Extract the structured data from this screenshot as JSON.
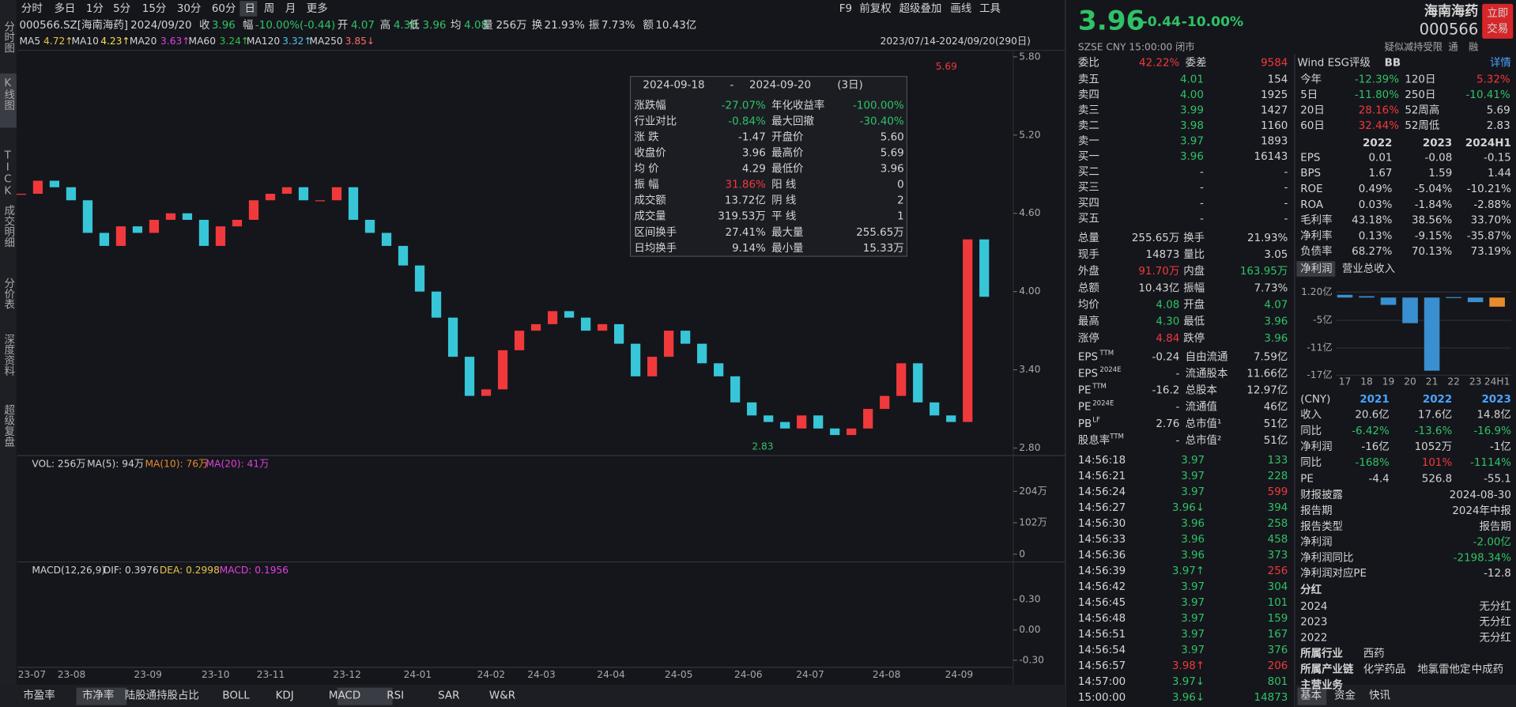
{
  "sidebar": [
    "分时图",
    "K线图",
    "TICK",
    "成交明细",
    "分价表",
    "深度资料",
    "超级复盘"
  ],
  "toolbar": {
    "periods": [
      "分时",
      "多日",
      "1分",
      "5分",
      "15分",
      "30分",
      "60分",
      "日",
      "周",
      "月",
      "更多"
    ],
    "tools": [
      "F9",
      "前复权",
      "超级叠加",
      "画线",
      "工具"
    ]
  },
  "quote_bar": {
    "code": "000566.SZ[海南海药]",
    "date": "2024/09/20",
    "items": [
      [
        "收",
        "3.96"
      ],
      [
        "幅",
        "-10.00%(-0.44)"
      ],
      [
        "开",
        "4.07"
      ],
      [
        "高",
        "4.30"
      ],
      [
        "低",
        "3.96"
      ],
      [
        "均",
        "4.08"
      ],
      [
        "量",
        "256万"
      ],
      [
        "换",
        "21.93%"
      ],
      [
        "振",
        "7.73%"
      ],
      [
        "额",
        "10.43亿"
      ]
    ]
  },
  "ma_bar": {
    "items": [
      [
        "MA5",
        "4.72↑"
      ],
      [
        "MA10",
        "4.23↑"
      ],
      [
        "MA20",
        "3.63↑"
      ],
      [
        "MA60",
        "3.24↑"
      ],
      [
        "MA120",
        "3.32↑"
      ],
      [
        "MA250",
        "3.85↓"
      ]
    ],
    "range": "2023/07/14-2024/09/20(290日)"
  },
  "price_chart": {
    "ylim": [
      2.75,
      5.85
    ],
    "yticks": [
      {
        "value": 5.8,
        "label": "5.80"
      },
      {
        "value": 5.2,
        "label": "5.20"
      },
      {
        "value": 4.6,
        "label": "4.60"
      },
      {
        "value": 4,
        "label": "4.00"
      },
      {
        "value": 3.4,
        "label": "3.40"
      },
      {
        "value": 2.8,
        "label": "2.80"
      }
    ],
    "weekly_closes": [
      4.75,
      4.85,
      4.8,
      4.7,
      4.45,
      4.35,
      4.5,
      4.45,
      4.55,
      4.6,
      4.55,
      4.35,
      4.5,
      4.55,
      4.7,
      4.75,
      4.8,
      4.7,
      4.7,
      4.8,
      4.55,
      4.45,
      4.35,
      4.2,
      4.0,
      3.8,
      3.5,
      3.2,
      3.25,
      3.55,
      3.7,
      3.75,
      3.85,
      3.8,
      3.7,
      3.75,
      3.6,
      3.35,
      3.5,
      3.7,
      3.6,
      3.45,
      3.35,
      3.15,
      3.05,
      3.0,
      2.95,
      3.05,
      2.95,
      2.9,
      2.95,
      3.1,
      3.2,
      3.45,
      3.15,
      3.05,
      3.0,
      4.4,
      3.96
    ],
    "high_label": "5.69",
    "low_label": "2.83"
  },
  "popup": {
    "start": "2024-09-18",
    "dash": "-",
    "end": "2024-09-20",
    "days": "(3日)",
    "rows": [
      [
        "涨跌幅",
        "-27.07%",
        "年化收益率",
        "-100.00%"
      ],
      [
        "行业对比",
        "-0.84%",
        "最大回撤",
        "-30.40%"
      ],
      [
        "涨 跌",
        "-1.47",
        "开盘价",
        "5.60"
      ],
      [
        "收盘价",
        "3.96",
        "最高价",
        "5.69"
      ],
      [
        "均 价",
        "4.29",
        "最低价",
        "3.96"
      ],
      [
        "振 幅",
        "31.86%",
        "阳 线",
        "0"
      ],
      [
        "成交额",
        "13.72亿",
        "阴 线",
        "2"
      ],
      [
        "成交量",
        "319.53万",
        "平 线",
        "1"
      ],
      [
        "区间换手",
        "27.41%",
        "最大量",
        "255.65万"
      ],
      [
        "日均换手",
        "9.14%",
        "最小量",
        "15.33万"
      ]
    ]
  },
  "volume_panel": {
    "header": [
      "VOL: 256万",
      "MA(5): 94万",
      "MA(10): 76万",
      "MA(20): 41万"
    ],
    "ylim": [
      -22,
      267
    ],
    "yticks": [
      {
        "value": 204,
        "label": "204万"
      },
      {
        "value": 102,
        "label": "102万"
      },
      0
    ]
  },
  "macd_panel": {
    "header": [
      "MACD(12,26,9)",
      "DIF: 0.3976",
      "DEA: 0.2998",
      "MACD: 0.1956"
    ],
    "ylim": [
      -0.37,
      0.51
    ],
    "yticks": [
      {
        "value": 0.3,
        "label": "0.30"
      },
      {
        "value": 0,
        "label": "0.00"
      },
      {
        "value": -0.3,
        "label": "-0.30"
      }
    ]
  },
  "x_axis": [
    "23-07",
    "23-08",
    "23-09",
    "23-10",
    "23-11",
    "23-12",
    "24-01",
    "24-02",
    "24-03",
    "24-04",
    "24-05",
    "24-06",
    "24-07",
    "24-08",
    "24-09"
  ],
  "bottom_tabs": [
    "市盈率",
    "市净率",
    "陆股通持股占比",
    "BOLL",
    "KDJ",
    "MACD",
    "RSI",
    "SAR",
    "W&R"
  ],
  "header": {
    "price": "3.96",
    "change": "-0.44",
    "pct": "-10.00%",
    "name": "海南海药",
    "code": "000566",
    "button": [
      "立即",
      "交易"
    ],
    "market": "SZSE  CNY  15:00:00  闭市",
    "tags": [
      "疑似减持受限",
      "通",
      "融"
    ]
  },
  "order_book": {
    "ratio": [
      "委比",
      "42.22%",
      "委差",
      "9584"
    ],
    "rows": [
      [
        "卖五",
        "4.01",
        "154"
      ],
      [
        "卖四",
        "4.00",
        "1925"
      ],
      [
        "卖三",
        "3.99",
        "1427"
      ],
      [
        "卖二",
        "3.98",
        "1160"
      ],
      [
        "卖一",
        "3.97",
        "1893"
      ],
      [
        "买一",
        "3.96",
        "16143"
      ],
      [
        "买二",
        "-",
        "-"
      ],
      [
        "买三",
        "-",
        "-"
      ],
      [
        "买四",
        "-",
        "-"
      ],
      [
        "买五",
        "-",
        "-"
      ]
    ]
  },
  "stats": [
    [
      "总量",
      "255.65万",
      "换手",
      "21.93%"
    ],
    [
      "现手",
      "14873",
      "量比",
      "3.05"
    ],
    [
      "外盘",
      "91.70万",
      "内盘",
      "163.95万"
    ],
    [
      "总额",
      "10.43亿",
      "振幅",
      "7.73%"
    ],
    [
      "均价",
      "4.08",
      "开盘",
      "4.07"
    ],
    [
      "最高",
      "4.30",
      "最低",
      "3.96"
    ],
    [
      "涨停",
      "4.84",
      "跌停",
      "3.96"
    ]
  ],
  "fundamentals": [
    [
      "EPS",
      "TTM",
      "-0.24",
      "自由流通",
      "7.59亿"
    ],
    [
      "EPS",
      "2024E",
      "-",
      "流通股本",
      "11.66亿"
    ],
    [
      "PE",
      "TTM",
      "-16.2",
      "总股本",
      "12.97亿"
    ],
    [
      "PE",
      "2024E",
      "-",
      "流通值",
      "46亿"
    ],
    [
      "PB",
      "LF",
      "2.76",
      "总市值¹",
      "51亿"
    ],
    [
      "股息率",
      "TTM",
      "-",
      "总市值²",
      "51亿"
    ]
  ],
  "ticks": [
    [
      "14:56:18",
      "3.97",
      "133"
    ],
    [
      "14:56:21",
      "3.97",
      "228"
    ],
    [
      "14:56:24",
      "3.97",
      "599"
    ],
    [
      "14:56:27",
      "3.96↓",
      "394"
    ],
    [
      "14:56:30",
      "3.96",
      "258"
    ],
    [
      "14:56:33",
      "3.96",
      "458"
    ],
    [
      "14:56:36",
      "3.96",
      "373"
    ],
    [
      "14:56:39",
      "3.97↑",
      "256"
    ],
    [
      "14:56:42",
      "3.97",
      "304"
    ],
    [
      "14:56:45",
      "3.97",
      "101"
    ],
    [
      "14:56:48",
      "3.97",
      "159"
    ],
    [
      "14:56:51",
      "3.97",
      "167"
    ],
    [
      "14:56:54",
      "3.97",
      "376"
    ],
    [
      "14:56:57",
      "3.98↑",
      "206"
    ],
    [
      "14:57:00",
      "3.97↓",
      "801"
    ],
    [
      "15:00:00",
      "3.96↓",
      "14873"
    ]
  ],
  "esg": [
    "Wind ESG评级",
    "BB",
    "详情"
  ],
  "performance": [
    [
      "今年",
      "-12.39%",
      "120日",
      "5.32%"
    ],
    [
      "5日",
      "-11.80%",
      "250日",
      "-10.41%"
    ],
    [
      "20日",
      "28.16%",
      "52周高",
      "5.69"
    ],
    [
      "60日",
      "32.44%",
      "52周低",
      "2.83"
    ]
  ],
  "finance": {
    "years": [
      "2022",
      "2023",
      "2024H1"
    ],
    "rows": [
      [
        "EPS",
        "0.01",
        "-0.08",
        "-0.15"
      ],
      [
        "BPS",
        "1.67",
        "1.59",
        "1.44"
      ],
      [
        "ROE",
        "0.49%",
        "-5.04%",
        "-10.21%"
      ],
      [
        "ROA",
        "0.03%",
        "-1.84%",
        "-2.88%"
      ],
      [
        "毛利率",
        "43.18%",
        "38.56%",
        "33.70%"
      ],
      [
        "净利率",
        "0.13%",
        "-9.15%",
        "-35.87%"
      ],
      [
        "负债率",
        "68.27%",
        "70.13%",
        "73.19%"
      ]
    ]
  },
  "profit_tabs": [
    "净利润",
    "营业总收入"
  ],
  "chart_data": {
    "type": "bar",
    "categories": [
      "17",
      "18",
      "19",
      "20",
      "21",
      "22",
      "23",
      "24H1"
    ],
    "values": [
      0.6,
      0.3,
      -1.6,
      -5.6,
      -16,
      0.1052,
      -1,
      -2
    ],
    "colors": [
      "#3a8fd0",
      "#3a8fd0",
      "#3a8fd0",
      "#3a8fd0",
      "#3a8fd0",
      "#3a8fd0",
      "#3a8fd0",
      "#e98a2c"
    ],
    "ylim": [
      -17.85,
      2.68
    ],
    "yticks": [
      {
        "value": 1.2,
        "label": "1.20亿"
      },
      {
        "value": -5,
        "label": "-5亿"
      },
      {
        "value": -11,
        "label": "-11亿"
      },
      {
        "value": -17,
        "label": "-17亿"
      }
    ]
  },
  "annual": {
    "header": [
      "(CNY)",
      "2021",
      "2022",
      "2023"
    ],
    "rows": [
      [
        "收入",
        "20.6亿",
        "17.6亿",
        "14.8亿"
      ],
      [
        "同比",
        "-6.42%",
        "-13.6%",
        "-16.9%"
      ],
      [
        "净利润",
        "-16亿",
        "1052万",
        "-1亿"
      ],
      [
        "同比",
        "-168%",
        "101%",
        "-1114%"
      ],
      [
        "PE",
        "-4.4",
        "526.8",
        "-55.1"
      ]
    ]
  },
  "report": [
    [
      "财报披露",
      "2024-08-30"
    ],
    [
      "报告期",
      "2024年中报"
    ],
    [
      "报告类型",
      "报告期"
    ],
    [
      "净利润",
      "-2.00亿"
    ],
    [
      "净利润同比",
      "-2198.34%"
    ],
    [
      "净利润对应PE",
      "-12.8"
    ]
  ],
  "dividend": {
    "title": "分红",
    "rows": [
      [
        "2024",
        "无分红"
      ],
      [
        "2023",
        "无分红"
      ],
      [
        "2022",
        "无分红"
      ]
    ]
  },
  "industry": [
    [
      "所属行业",
      "西药"
    ],
    [
      "所属产业链",
      "化学药品",
      "地氯雷他定",
      "中成药"
    ],
    [
      "主营业务"
    ]
  ],
  "side_tabs": [
    "基本",
    "资金",
    "快讯"
  ]
}
